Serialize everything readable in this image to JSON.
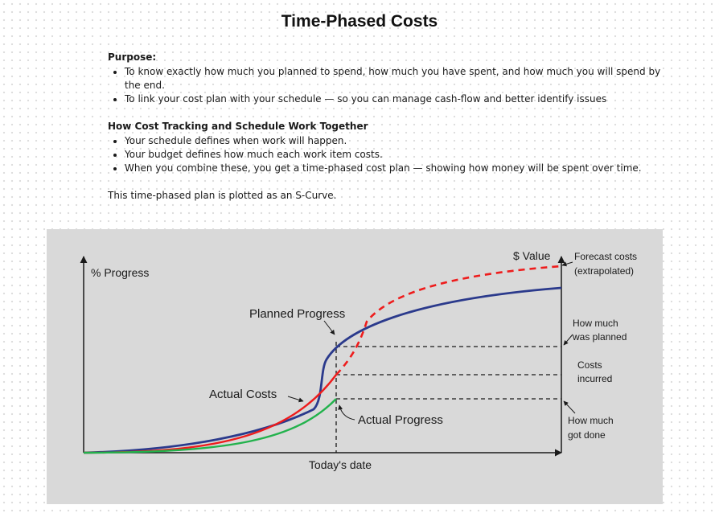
{
  "title": "Time-Phased Costs",
  "purpose": {
    "heading": "Purpose:",
    "items": [
      "To know exactly how much you planned to spend, how much you have spent, and how much you will spend by the end.",
      "To link your cost plan with your schedule — so you can manage cash-flow and better identify issues"
    ]
  },
  "cost_tracking": {
    "heading": "How Cost Tracking and Schedule Work Together",
    "items": [
      "Your schedule defines when work will happen.",
      "Your budget defines how much each work item costs.",
      "When you combine these, you get a time-phased cost plan — showing how money will be spent over time."
    ]
  },
  "summary": "This time-phased plan is plotted as an S-Curve.",
  "diagram": {
    "y_axis_left": "% Progress",
    "y_axis_right": "$ Value",
    "x_axis": "Today's date",
    "labels": {
      "planned_progress": "Planned Progress",
      "actual_costs": "Actual Costs",
      "actual_progress": "Actual Progress"
    },
    "annotations": {
      "forecast_1": "Forecast costs",
      "forecast_2": "(extrapolated)",
      "planned_1": "How much",
      "planned_2": "was planned",
      "costs_1": "Costs",
      "costs_2": "incurred",
      "done_1": "How much",
      "done_2": "got done"
    },
    "colors": {
      "planned": "#2b3a8c",
      "actual_costs": "#ee1c1c",
      "actual_progress": "#22b24c",
      "forecast": "#ee1c1c",
      "background": "#d9d9d9"
    }
  }
}
